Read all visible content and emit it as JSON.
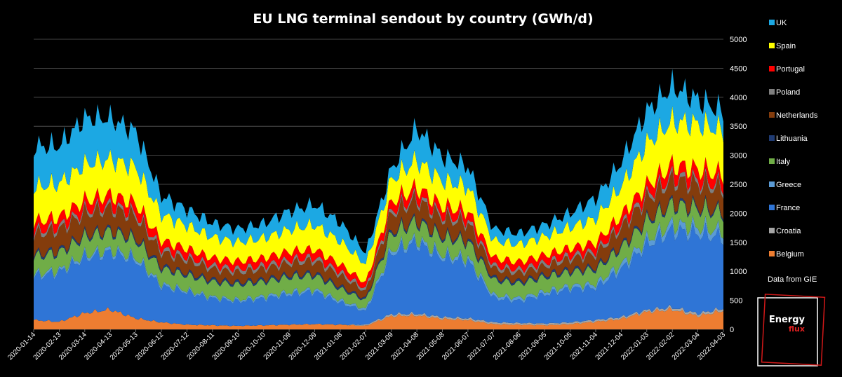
{
  "chart_data": {
    "type": "area",
    "stacked": true,
    "title": "EU LNG terminal sendout by country (GWh/d)",
    "ylabel": "",
    "xlabel": "",
    "ylim": [
      0,
      5000
    ],
    "yticks": [
      0,
      500,
      1000,
      1500,
      2000,
      2500,
      3000,
      3500,
      4000,
      4500,
      5000
    ],
    "grid": true,
    "legend_position": "right",
    "categories": [
      "2020-01-14",
      "2020-02-13",
      "2020-03-14",
      "2020-04-13",
      "2020-05-13",
      "2020-06-12",
      "2020-07-12",
      "2020-08-11",
      "2020-09-10",
      "2020-10-10",
      "2020-11-09",
      "2020-12-09",
      "2021-01-08",
      "2021-02-07",
      "2021-03-09",
      "2021-04-08",
      "2021-05-08",
      "2021-06-07",
      "2021-07-07",
      "2021-08-06",
      "2021-09-05",
      "2021-10-05",
      "2021-11-04",
      "2021-12-04",
      "2022-01-03",
      "2022-02-02",
      "2022-03-04",
      "2022-04-03"
    ],
    "series": [
      {
        "name": "Belgium",
        "color": "#ed7d31",
        "values": [
          160,
          130,
          280,
          340,
          190,
          120,
          80,
          70,
          60,
          70,
          80,
          90,
          80,
          60,
          230,
          240,
          180,
          160,
          90,
          80,
          70,
          90,
          130,
          180,
          300,
          340,
          230,
          320
        ]
      },
      {
        "name": "Croatia",
        "color": "#a5a5a5",
        "values": [
          0,
          0,
          0,
          0,
          0,
          0,
          0,
          0,
          0,
          0,
          0,
          0,
          0,
          20,
          30,
          30,
          30,
          30,
          30,
          30,
          30,
          30,
          30,
          30,
          30,
          40,
          40,
          40
        ]
      },
      {
        "name": "France",
        "color": "#2f75d6",
        "values": [
          750,
          850,
          950,
          980,
          1000,
          620,
          560,
          460,
          420,
          460,
          520,
          560,
          380,
          230,
          1050,
          1220,
          1020,
          980,
          420,
          380,
          500,
          580,
          560,
          820,
          1120,
          1320,
          1380,
          1220
        ]
      },
      {
        "name": "Greece",
        "color": "#5b9bd5",
        "values": [
          40,
          40,
          50,
          50,
          50,
          40,
          30,
          30,
          30,
          40,
          40,
          40,
          40,
          40,
          60,
          60,
          60,
          60,
          50,
          50,
          50,
          50,
          60,
          80,
          90,
          110,
          110,
          110
        ]
      },
      {
        "name": "Italy",
        "color": "#70ad47",
        "values": [
          300,
          300,
          310,
          310,
          300,
          270,
          260,
          260,
          260,
          250,
          260,
          240,
          200,
          150,
          280,
          300,
          290,
          280,
          260,
          250,
          250,
          240,
          250,
          290,
          320,
          330,
          320,
          310
        ]
      },
      {
        "name": "Lithuania",
        "color": "#1f3b73",
        "values": [
          40,
          40,
          40,
          40,
          40,
          40,
          40,
          40,
          40,
          40,
          40,
          40,
          40,
          30,
          40,
          40,
          40,
          40,
          40,
          40,
          40,
          40,
          40,
          40,
          40,
          40,
          40,
          40
        ]
      },
      {
        "name": "Netherlands",
        "color": "#843c0c",
        "values": [
          340,
          350,
          360,
          360,
          360,
          240,
          220,
          180,
          170,
          180,
          200,
          210,
          190,
          120,
          300,
          330,
          290,
          280,
          150,
          140,
          150,
          180,
          220,
          300,
          340,
          380,
          380,
          370
        ]
      },
      {
        "name": "Poland",
        "color": "#7f7f7f",
        "values": [
          60,
          60,
          60,
          60,
          60,
          60,
          60,
          60,
          60,
          60,
          60,
          60,
          60,
          50,
          60,
          60,
          60,
          60,
          60,
          60,
          60,
          60,
          60,
          60,
          70,
          70,
          70,
          70
        ]
      },
      {
        "name": "Portugal",
        "color": "#ff0000",
        "values": [
          160,
          160,
          170,
          170,
          170,
          140,
          140,
          130,
          130,
          130,
          140,
          140,
          130,
          100,
          150,
          160,
          150,
          150,
          130,
          130,
          130,
          130,
          140,
          160,
          170,
          190,
          190,
          180
        ]
      },
      {
        "name": "Spain",
        "color": "#ffff00",
        "values": [
          600,
          580,
          620,
          620,
          620,
          450,
          400,
          360,
          330,
          340,
          380,
          420,
          400,
          320,
          380,
          470,
          440,
          420,
          300,
          300,
          320,
          360,
          420,
          500,
          720,
          760,
          780,
          760
        ]
      },
      {
        "name": "UK",
        "color": "#1ca8e3",
        "values": [
          700,
          650,
          800,
          700,
          620,
          320,
          280,
          240,
          230,
          250,
          320,
          350,
          320,
          200,
          180,
          550,
          420,
          350,
          200,
          190,
          200,
          240,
          350,
          420,
          560,
          600,
          420,
          320
        ]
      }
    ],
    "legend_order": [
      "UK",
      "Spain",
      "Portugal",
      "Poland",
      "Netherlands",
      "Lithuania",
      "Italy",
      "Greece",
      "France",
      "Croatia",
      "Belgium"
    ],
    "source_note": "Data from GIE"
  },
  "logo": {
    "line1": "Energy",
    "line2": "flux"
  }
}
